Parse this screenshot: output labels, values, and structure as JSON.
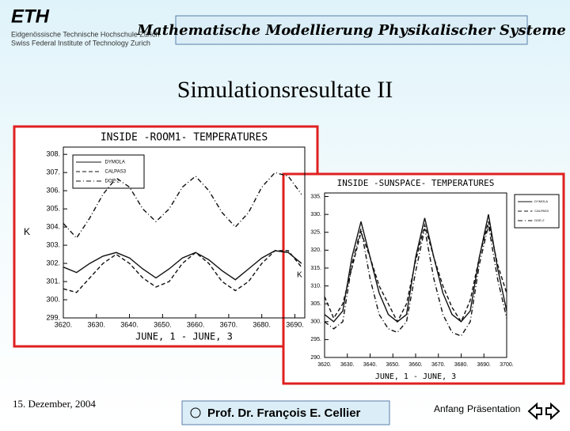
{
  "header": {
    "logo": "ETH",
    "institution_de": "Eidgenössische Technische Hochschule Zürich",
    "institution_en": "Swiss Federal Institute of Technology Zurich",
    "course": "Mathematische Modellierung Physikalischer Systeme"
  },
  "slide_title": "Simulationsresultate II",
  "footer": {
    "date": "15. Dezember, 2004",
    "presenter": "Prof. Dr. François E. Cellier",
    "nav_start": "Anfang",
    "nav_presentation": "Präsentation"
  },
  "chart_data": [
    {
      "type": "line",
      "title": "INSIDE -ROOM1- TEMPERATURES",
      "y_label": "K",
      "x_label": "JUNE, 1 - JUNE, 3",
      "x": [
        3620,
        3624,
        3628,
        3632,
        3636,
        3640,
        3644,
        3648,
        3652,
        3656,
        3660,
        3664,
        3668,
        3672,
        3676,
        3680,
        3684,
        3688,
        3692
      ],
      "xlim": [
        3620,
        3693
      ],
      "ylim": [
        299,
        308.4
      ],
      "xticks": [
        {
          "value": 3620,
          "label": "3620."
        },
        {
          "value": 3630,
          "label": "3630."
        },
        {
          "value": 3640,
          "label": "3640."
        },
        {
          "value": 3650,
          "label": "3650."
        },
        {
          "value": 3660,
          "label": "3660."
        },
        {
          "value": 3670,
          "label": "3670."
        },
        {
          "value": 3680,
          "label": "3680."
        },
        {
          "value": 3690,
          "label": "3690."
        }
      ],
      "yticks": [
        {
          "value": 299,
          "label": "299."
        },
        {
          "value": 300,
          "label": "300."
        },
        {
          "value": 301,
          "label": "301."
        },
        {
          "value": 302,
          "label": "302."
        },
        {
          "value": 303,
          "label": "303."
        },
        {
          "value": 304,
          "label": "304."
        },
        {
          "value": 305,
          "label": "305."
        },
        {
          "value": 306,
          "label": "306."
        },
        {
          "value": 307,
          "label": "307."
        },
        {
          "value": 308,
          "label": "308."
        }
      ],
      "series": [
        {
          "name": "DYMOLA",
          "color": "#111111",
          "dash": "solid",
          "values": [
            301.8,
            301.5,
            302.0,
            302.4,
            302.6,
            302.3,
            301.7,
            301.2,
            301.7,
            302.3,
            302.6,
            302.2,
            301.6,
            301.1,
            301.7,
            302.3,
            302.7,
            302.6,
            302.0
          ]
        },
        {
          "name": "CALPAS3",
          "color": "#111111",
          "dash": "dashed",
          "values": [
            300.6,
            300.4,
            301.2,
            302.0,
            302.5,
            302.0,
            301.2,
            300.7,
            301.0,
            302.0,
            302.6,
            302.0,
            301.0,
            300.5,
            301.0,
            302.0,
            302.7,
            302.7,
            301.8
          ]
        },
        {
          "name": "DOE-2",
          "color": "#111111",
          "dash": "dashdot",
          "values": [
            304.2,
            303.4,
            304.5,
            305.8,
            306.7,
            306.2,
            305.0,
            304.3,
            305.0,
            306.2,
            306.8,
            306.0,
            304.8,
            304.0,
            304.8,
            306.2,
            307.0,
            306.8,
            305.8
          ]
        }
      ]
    },
    {
      "type": "line",
      "title": "INSIDE -SUNSPACE- TEMPERATURES",
      "y_label": "K",
      "x_label": "JUNE, 1 - JUNE, 3",
      "x": [
        3620,
        3624,
        3628,
        3632,
        3636,
        3640,
        3644,
        3648,
        3652,
        3656,
        3660,
        3664,
        3668,
        3672,
        3676,
        3680,
        3684,
        3688,
        3692,
        3696,
        3700
      ],
      "xlim": [
        3620,
        3700
      ],
      "ylim": [
        290,
        336
      ],
      "xticks": [
        {
          "value": 3620,
          "label": "3620."
        },
        {
          "value": 3630,
          "label": "3630."
        },
        {
          "value": 3640,
          "label": "3640."
        },
        {
          "value": 3650,
          "label": "3650."
        },
        {
          "value": 3660,
          "label": "3660."
        },
        {
          "value": 3670,
          "label": "3670."
        },
        {
          "value": 3680,
          "label": "3680."
        },
        {
          "value": 3690,
          "label": "3690."
        },
        {
          "value": 3700,
          "label": "3700."
        }
      ],
      "yticks": [
        {
          "value": 290,
          "label": "290."
        },
        {
          "value": 295,
          "label": "295."
        },
        {
          "value": 300,
          "label": "300."
        },
        {
          "value": 305,
          "label": "305."
        },
        {
          "value": 310,
          "label": "310."
        },
        {
          "value": 315,
          "label": "315."
        },
        {
          "value": 320,
          "label": "320."
        },
        {
          "value": 325,
          "label": "325."
        },
        {
          "value": 330,
          "label": "330."
        },
        {
          "value": 335,
          "label": "335."
        }
      ],
      "series": [
        {
          "name": "DYMOLA",
          "color": "#111111",
          "dash": "solid",
          "values": [
            302,
            300,
            303,
            318,
            328,
            318,
            308,
            302,
            300,
            302,
            318,
            329,
            318,
            308,
            302,
            300,
            303,
            318,
            330,
            315,
            303
          ]
        },
        {
          "name": "CALPAS3",
          "color": "#111111",
          "dash": "dashed",
          "values": [
            307,
            301,
            305,
            315,
            325,
            318,
            310,
            305,
            300,
            305,
            317,
            327,
            318,
            310,
            304,
            300,
            306,
            318,
            328,
            316,
            308
          ]
        },
        {
          "name": "DOE-2",
          "color": "#111111",
          "dash": "dashdot",
          "values": [
            300,
            298,
            300,
            316,
            326,
            312,
            302,
            298,
            297,
            300,
            314,
            326,
            312,
            302,
            297,
            296,
            300,
            316,
            327,
            312,
            301
          ]
        }
      ]
    }
  ]
}
